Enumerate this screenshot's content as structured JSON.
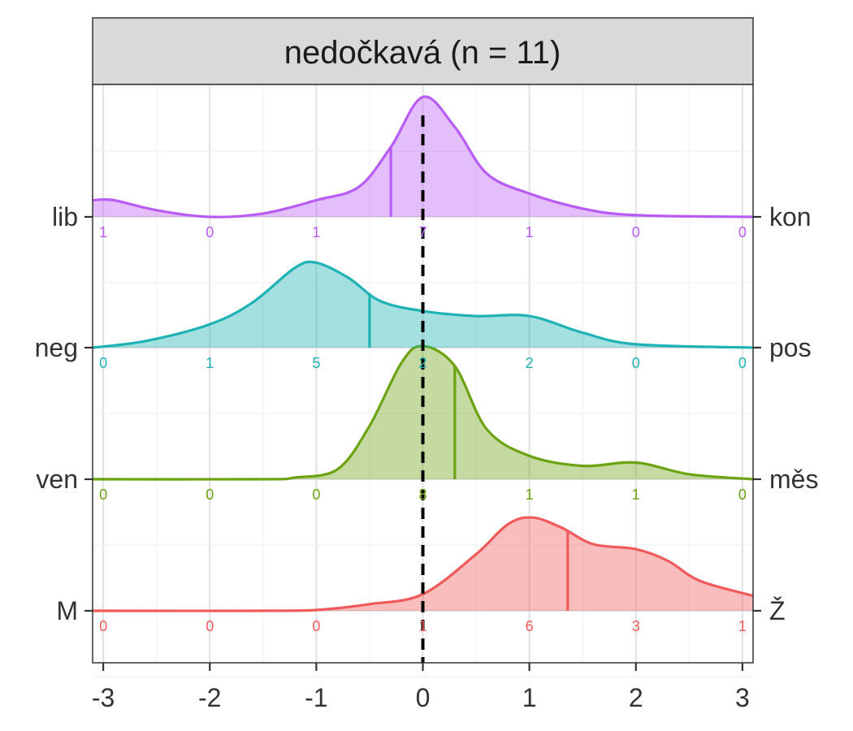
{
  "chart_data": {
    "type": "ridgeline-density",
    "facet_title": "nedočkavá (n = 11)",
    "x_axis": {
      "ticks": [
        -3,
        -2,
        -1,
        0,
        1,
        2,
        3
      ],
      "tick_labels": [
        "-3",
        "-2",
        "-1",
        "0",
        "1",
        "2",
        "3"
      ],
      "xlim": [
        -3.1,
        3.1
      ]
    },
    "reference_line_x": 0,
    "count_x_positions": [
      -3,
      -2,
      -1,
      0,
      1,
      2,
      3
    ],
    "grid": true,
    "series": [
      {
        "left_label": "M",
        "right_label": "Ž",
        "color": "#F15A5A",
        "counts": [
          0,
          0,
          0,
          1,
          6,
          3,
          1
        ],
        "median_x": 1.36,
        "density": [
          [
            -3.1,
            0
          ],
          [
            -1.5,
            0
          ],
          [
            -1.0,
            0.005
          ],
          [
            -0.5,
            0.04
          ],
          [
            0,
            0.1
          ],
          [
            0.5,
            0.34
          ],
          [
            0.8,
            0.52
          ],
          [
            1.03,
            0.56
          ],
          [
            1.3,
            0.5
          ],
          [
            1.6,
            0.4
          ],
          [
            2.0,
            0.37
          ],
          [
            2.3,
            0.3
          ],
          [
            2.6,
            0.18
          ],
          [
            3.1,
            0.09
          ]
        ]
      },
      {
        "left_label": "ven",
        "right_label": "měs",
        "color": "#6BA313",
        "counts": [
          0,
          0,
          0,
          8,
          1,
          1,
          0
        ],
        "median_x": 0.3,
        "density": [
          [
            -3.1,
            0
          ],
          [
            -1.5,
            0
          ],
          [
            -1.2,
            0.01
          ],
          [
            -0.8,
            0.06
          ],
          [
            -0.5,
            0.32
          ],
          [
            -0.2,
            0.7
          ],
          [
            0,
            0.8
          ],
          [
            0.3,
            0.68
          ],
          [
            0.6,
            0.3
          ],
          [
            1.0,
            0.14
          ],
          [
            1.5,
            0.08
          ],
          [
            2.0,
            0.1
          ],
          [
            2.5,
            0.03
          ],
          [
            3.1,
            0
          ]
        ]
      },
      {
        "left_label": "neg",
        "right_label": "pos",
        "color": "#1FB2B5",
        "counts": [
          0,
          1,
          5,
          2,
          2,
          0,
          0
        ],
        "median_x": -0.5,
        "density": [
          [
            -3.1,
            0
          ],
          [
            -2.6,
            0.04
          ],
          [
            -2.0,
            0.14
          ],
          [
            -1.6,
            0.27
          ],
          [
            -1.2,
            0.48
          ],
          [
            -1.0,
            0.51
          ],
          [
            -0.7,
            0.42
          ],
          [
            -0.4,
            0.28
          ],
          [
            0,
            0.22
          ],
          [
            0.5,
            0.19
          ],
          [
            1.0,
            0.19
          ],
          [
            1.5,
            0.09
          ],
          [
            2.0,
            0.02
          ],
          [
            3.1,
            0
          ]
        ]
      },
      {
        "left_label": "lib",
        "right_label": "kon",
        "color": "#B85CF5",
        "counts": [
          1,
          0,
          1,
          7,
          1,
          0,
          0
        ],
        "median_x": -0.3,
        "density": [
          [
            -3.1,
            0.1
          ],
          [
            -2.9,
            0.1
          ],
          [
            -2.5,
            0.04
          ],
          [
            -2.0,
            0
          ],
          [
            -1.5,
            0.02
          ],
          [
            -1.0,
            0.1
          ],
          [
            -0.6,
            0.18
          ],
          [
            -0.3,
            0.42
          ],
          [
            0,
            0.72
          ],
          [
            0.3,
            0.54
          ],
          [
            0.6,
            0.26
          ],
          [
            1.0,
            0.14
          ],
          [
            1.5,
            0.05
          ],
          [
            2.0,
            0.01
          ],
          [
            3.1,
            0
          ]
        ]
      }
    ]
  }
}
